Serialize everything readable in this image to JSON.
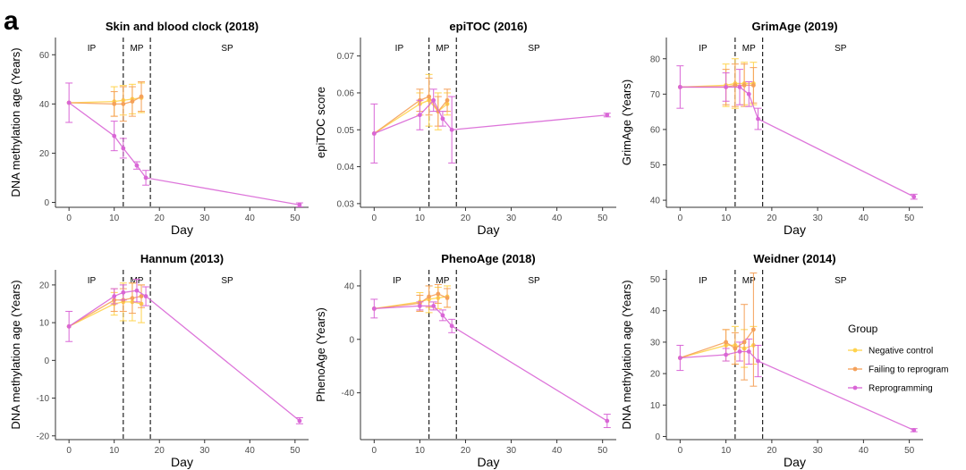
{
  "panel_letter": "a",
  "colors": {
    "negative_control": "#FFD34D",
    "failing_to_reprogram": "#F5A15A",
    "reprogramming": "#D966D6"
  },
  "legend": {
    "title": "Group",
    "items": [
      "Negative control",
      "Failing to reprogram",
      "Reprogramming"
    ]
  },
  "chart_data": [
    {
      "type": "line",
      "title": "Skin and blood clock (2018)",
      "xlabel": "Day",
      "ylabel": "DNA methylation age (Years)",
      "xlim": [
        -3,
        53
      ],
      "ylim": [
        -2,
        67
      ],
      "xticks": [
        0,
        10,
        20,
        30,
        40,
        50
      ],
      "yticks": [
        0,
        20,
        40,
        60
      ],
      "ytick_labels": [
        "0",
        "20",
        "40",
        "60"
      ],
      "phase_lines": [
        12,
        18
      ],
      "phases": [
        {
          "label": "IP",
          "x": 5
        },
        {
          "label": "MP",
          "x": 15
        },
        {
          "label": "SP",
          "x": 35
        }
      ],
      "series": [
        {
          "name": "Negative control",
          "x": [
            0,
            10,
            12,
            14,
            16
          ],
          "y": [
            40.5,
            41,
            41.5,
            42,
            42.5
          ],
          "err": [
            0,
            6,
            6,
            6,
            6
          ]
        },
        {
          "name": "Failing to reprogram",
          "x": [
            0,
            10,
            12,
            14,
            16
          ],
          "y": [
            40.5,
            40,
            40,
            41,
            43
          ],
          "err": [
            0,
            5,
            7,
            6,
            6
          ]
        },
        {
          "name": "Reprogramming",
          "x": [
            0,
            10,
            12,
            15,
            17,
            51
          ],
          "y": [
            40.5,
            27,
            22,
            15,
            10,
            -1
          ],
          "err": [
            8,
            6,
            4,
            1.5,
            3,
            0.8
          ]
        }
      ]
    },
    {
      "type": "line",
      "title": "epiTOC (2016)",
      "xlabel": "Day",
      "ylabel": "epiTOC score",
      "xlim": [
        -3,
        53
      ],
      "ylim": [
        0.029,
        0.075
      ],
      "xticks": [
        0,
        10,
        20,
        30,
        40,
        50
      ],
      "yticks": [
        0.03,
        0.04,
        0.05,
        0.06,
        0.07
      ],
      "ytick_labels": [
        "0.03",
        "0.04",
        "0.05",
        "0.06",
        "0.07"
      ],
      "phase_lines": [
        12,
        18
      ],
      "phases": [
        {
          "label": "IP",
          "x": 5.5
        },
        {
          "label": "MP",
          "x": 15
        },
        {
          "label": "SP",
          "x": 35
        }
      ],
      "series": [
        {
          "name": "Negative control",
          "x": [
            0,
            10,
            12,
            14,
            16
          ],
          "y": [
            0.049,
            0.057,
            0.058,
            0.055,
            0.057
          ],
          "err": [
            0,
            0.003,
            0.007,
            0.005,
            0.003
          ]
        },
        {
          "name": "Failing to reprogram",
          "x": [
            0,
            10,
            12,
            14,
            16
          ],
          "y": [
            0.049,
            0.058,
            0.059,
            0.055,
            0.058
          ],
          "err": [
            0,
            0.003,
            0.005,
            0.004,
            0.003
          ]
        },
        {
          "name": "Reprogramming",
          "x": [
            0,
            10,
            13,
            15,
            17,
            51
          ],
          "y": [
            0.049,
            0.054,
            0.058,
            0.053,
            0.05,
            0.054
          ],
          "err": [
            0.008,
            0.004,
            0.003,
            0.002,
            0.009,
            0.0005
          ]
        }
      ]
    },
    {
      "type": "line",
      "title": "GrimAge (2019)",
      "xlabel": "Day",
      "ylabel": "GrimAge (Years)",
      "xlim": [
        -3,
        53
      ],
      "ylim": [
        38,
        86
      ],
      "xticks": [
        0,
        10,
        20,
        30,
        40,
        50
      ],
      "yticks": [
        40,
        50,
        60,
        70,
        80
      ],
      "ytick_labels": [
        "40",
        "50",
        "60",
        "70",
        "80"
      ],
      "phase_lines": [
        12,
        18
      ],
      "phases": [
        {
          "label": "IP",
          "x": 5
        },
        {
          "label": "MP",
          "x": 15
        },
        {
          "label": "SP",
          "x": 35
        }
      ],
      "series": [
        {
          "name": "Negative control",
          "x": [
            0,
            10,
            12,
            14,
            16
          ],
          "y": [
            72,
            72.5,
            73,
            73,
            73
          ],
          "err": [
            0,
            6,
            7,
            6,
            6
          ]
        },
        {
          "name": "Failing to reprogram",
          "x": [
            0,
            10,
            12,
            14,
            16
          ],
          "y": [
            72,
            72,
            72.5,
            72.5,
            72.5
          ],
          "err": [
            0,
            5,
            6,
            6,
            5
          ]
        },
        {
          "name": "Reprogramming",
          "x": [
            0,
            10,
            13,
            15,
            17,
            51
          ],
          "y": [
            72,
            72,
            72,
            70,
            63,
            41
          ],
          "err": [
            6,
            4,
            5,
            3.5,
            3,
            0.7
          ]
        }
      ]
    },
    {
      "type": "line",
      "title": "Hannum (2013)",
      "xlabel": "Day",
      "ylabel": "DNA methylation age (Years)",
      "xlim": [
        -3,
        53
      ],
      "ylim": [
        -21,
        24
      ],
      "xticks": [
        0,
        10,
        20,
        30,
        40,
        50
      ],
      "yticks": [
        -20,
        -10,
        0,
        10,
        20
      ],
      "ytick_labels": [
        "-20",
        "-10",
        "0",
        "10",
        "20"
      ],
      "phase_lines": [
        12,
        18
      ],
      "phases": [
        {
          "label": "IP",
          "x": 5
        },
        {
          "label": "MP",
          "x": 15
        },
        {
          "label": "SP",
          "x": 35
        }
      ],
      "series": [
        {
          "name": "Negative control",
          "x": [
            0,
            10,
            12,
            14,
            16
          ],
          "y": [
            9,
            15,
            15.5,
            15.5,
            15
          ],
          "err": [
            0,
            3,
            5,
            5,
            5
          ]
        },
        {
          "name": "Failing to reprogram",
          "x": [
            0,
            10,
            12,
            14,
            16
          ],
          "y": [
            9,
            16,
            16,
            16.5,
            17
          ],
          "err": [
            0,
            3,
            3,
            4,
            3
          ]
        },
        {
          "name": "Reprogramming",
          "x": [
            0,
            10,
            12,
            15,
            17,
            51
          ],
          "y": [
            9,
            17,
            18,
            18.5,
            17,
            -16
          ],
          "err": [
            4,
            2,
            2,
            3,
            2.5,
            0.8
          ]
        }
      ]
    },
    {
      "type": "line",
      "title": "PhenoAge (2018)",
      "xlabel": "Day",
      "ylabel": "PhenoAge (Years)",
      "xlim": [
        -3,
        53
      ],
      "ylim": [
        -75,
        52
      ],
      "xticks": [
        0,
        10,
        20,
        30,
        40,
        50
      ],
      "yticks": [
        -40,
        0,
        40
      ],
      "ytick_labels": [
        "-40",
        "0",
        "40"
      ],
      "phase_lines": [
        12,
        18
      ],
      "phases": [
        {
          "label": "IP",
          "x": 5
        },
        {
          "label": "MP",
          "x": 15
        },
        {
          "label": "SP",
          "x": 35
        }
      ],
      "series": [
        {
          "name": "Negative control",
          "x": [
            0,
            10,
            12,
            14,
            16
          ],
          "y": [
            23,
            28,
            30,
            31,
            32
          ],
          "err": [
            0,
            7,
            10,
            8,
            8
          ]
        },
        {
          "name": "Failing to reprogram",
          "x": [
            0,
            10,
            12,
            14,
            16
          ],
          "y": [
            23,
            27,
            32,
            34,
            31
          ],
          "err": [
            0,
            6,
            8,
            7,
            7
          ]
        },
        {
          "name": "Reprogramming",
          "x": [
            0,
            10,
            13,
            15,
            17,
            51
          ],
          "y": [
            23,
            25,
            25,
            18,
            10,
            -61
          ],
          "err": [
            7,
            3,
            3,
            4,
            5,
            5
          ]
        }
      ]
    },
    {
      "type": "line",
      "title": "Weidner (2014)",
      "xlabel": "Day",
      "ylabel": "DNA methylation age (Years)",
      "xlim": [
        -3,
        53
      ],
      "ylim": [
        -1,
        53
      ],
      "xticks": [
        0,
        10,
        20,
        30,
        40,
        50
      ],
      "yticks": [
        0,
        10,
        20,
        30,
        40,
        50
      ],
      "ytick_labels": [
        "0",
        "10",
        "20",
        "30",
        "40",
        "50"
      ],
      "phase_lines": [
        12,
        18
      ],
      "phases": [
        {
          "label": "IP",
          "x": 5
        },
        {
          "label": "MP",
          "x": 15
        },
        {
          "label": "SP",
          "x": 35
        }
      ],
      "series": [
        {
          "name": "Negative control",
          "x": [
            0,
            10,
            12,
            14,
            16
          ],
          "y": [
            25,
            29,
            29,
            28,
            29
          ],
          "err": [
            0,
            5,
            6,
            6,
            6
          ]
        },
        {
          "name": "Failing to reprogram",
          "x": [
            0,
            10,
            12,
            14,
            16
          ],
          "y": [
            25,
            30,
            28,
            30,
            34
          ],
          "err": [
            0,
            4,
            5,
            12,
            18
          ]
        },
        {
          "name": "Reprogramming",
          "x": [
            0,
            10,
            13,
            15,
            17,
            51
          ],
          "y": [
            25,
            26,
            27,
            27,
            24,
            2
          ],
          "err": [
            4,
            2,
            3,
            4,
            5,
            0.5
          ]
        }
      ]
    }
  ]
}
